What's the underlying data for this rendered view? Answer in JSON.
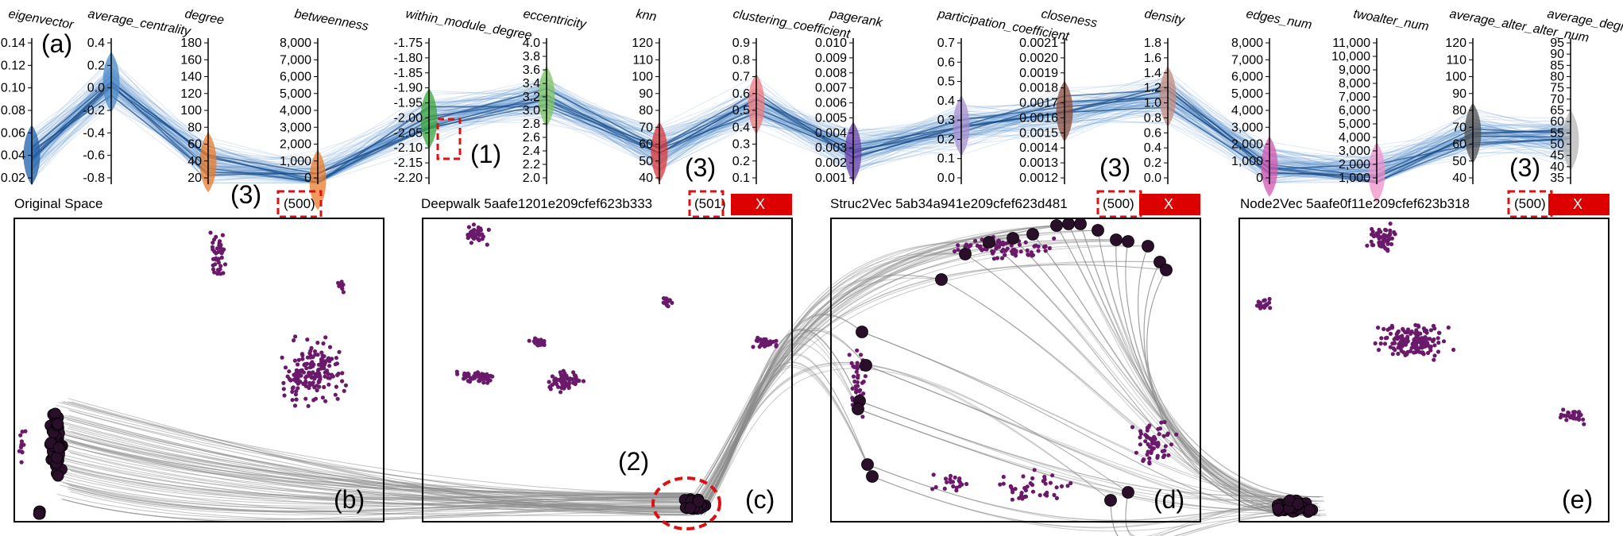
{
  "parallel_coordinates": {
    "marker": "(a)",
    "axes": [
      {
        "name": "eigenvector",
        "ticks": [
          "0.14",
          "0.12",
          "0.10",
          "0.08",
          "0.06",
          "0.04",
          "0.02"
        ],
        "color": "#1f5fa8"
      },
      {
        "name": "average_centrality",
        "ticks": [
          "0.4",
          "0.2",
          "0.0",
          "-0.2",
          "-0.4",
          "-0.6",
          "-0.8"
        ],
        "color": "#4a88c6"
      },
      {
        "name": "degree",
        "ticks": [
          "180",
          "160",
          "140",
          "120",
          "100",
          "80",
          "60",
          "40",
          "20"
        ],
        "color": "#e87b2a"
      },
      {
        "name": "betweenness",
        "ticks": [
          "8,000",
          "7,000",
          "6,000",
          "5,000",
          "4,000",
          "3,000",
          "2,000",
          "1,000",
          "0"
        ],
        "color": "#e87b2a"
      },
      {
        "name": "within_module_degree",
        "ticks": [
          "-1.75",
          "-1.80",
          "-1.85",
          "-1.90",
          "-1.95",
          "-2.00",
          "-2.05",
          "-2.10",
          "-2.15",
          "-2.20"
        ],
        "color": "#3aa43a"
      },
      {
        "name": "eccentricity",
        "ticks": [
          "4.0",
          "3.8",
          "3.6",
          "3.4",
          "3.2",
          "3.0",
          "2.8",
          "2.6",
          "2.4",
          "2.2",
          "2.0"
        ],
        "color": "#7cc460"
      },
      {
        "name": "knn",
        "ticks": [
          "120",
          "110",
          "100",
          "90",
          "80",
          "70",
          "60",
          "50",
          "40"
        ],
        "color": "#d9363a"
      },
      {
        "name": "clustering_coefficient",
        "ticks": [
          "0.9",
          "0.8",
          "0.7",
          "0.6",
          "0.5",
          "0.4",
          "0.3",
          "0.2",
          "0.1"
        ],
        "color": "#ee7a7c"
      },
      {
        "name": "pagerank",
        "ticks": [
          "0.010",
          "0.009",
          "0.008",
          "0.007",
          "0.006",
          "0.005",
          "0.004",
          "0.003",
          "0.002",
          "0.001"
        ],
        "color": "#6a3fa8"
      },
      {
        "name": "participation_coefficient",
        "ticks": [
          "0.7",
          "0.6",
          "0.5",
          "0.4",
          "0.3",
          "0.2",
          "0.1",
          "0.0"
        ],
        "color": "#a78fce"
      },
      {
        "name": "closeness",
        "ticks": [
          "0.0021",
          "0.0020",
          "0.0019",
          "0.0018",
          "0.0017",
          "0.0016",
          "0.0015",
          "0.0014",
          "0.0013",
          "0.0012"
        ],
        "color": "#8a4a3a"
      },
      {
        "name": "density",
        "ticks": [
          "1.8",
          "1.6",
          "1.4",
          "1.2",
          "1.0",
          "0.8",
          "0.6",
          "0.4",
          "0.2",
          "0.0"
        ],
        "color": "#c28a7e"
      },
      {
        "name": "edges_num",
        "ticks": [
          "8,000",
          "7,000",
          "6,000",
          "5,000",
          "4,000",
          "3,000",
          "2,000",
          "1,000",
          "0"
        ],
        "color": "#d454b0"
      },
      {
        "name": "twoalter_num",
        "ticks": [
          "11,000",
          "10,000",
          "9,000",
          "8,000",
          "7,000",
          "6,000",
          "5,000",
          "4,000",
          "3,000",
          "2,000",
          "1,000"
        ],
        "color": "#ef90c8"
      },
      {
        "name": "average_alter_alter_num",
        "ticks": [
          "120",
          "110",
          "100",
          "90",
          "80",
          "70",
          "60",
          "50",
          "40"
        ],
        "color": "#505050"
      },
      {
        "name": "average_degree",
        "ticks": [
          "95",
          "90",
          "85",
          "80",
          "75",
          "70",
          "65",
          "60",
          "55",
          "50",
          "45",
          "40",
          "35"
        ],
        "color": "#b5b5b5"
      }
    ],
    "annotation_1": "(1)"
  },
  "panels": [
    {
      "title": "Original Space",
      "count": "(500)",
      "marker": "(b)",
      "closable": false,
      "annotation": "(3)"
    },
    {
      "title": "Deepwalk 5aafe1201e209cfef623b333",
      "count": "(501)",
      "marker": "(c)",
      "closable": true,
      "close_label": "X",
      "annotation": "(3)"
    },
    {
      "title": "Struc2Vec 5ab34a941e209cfef623d481",
      "count": "(500)",
      "marker": "(d)",
      "closable": true,
      "close_label": "X",
      "annotation": "(3)"
    },
    {
      "title": "Node2Vec 5aafe0f11e209cfef623b318",
      "count": "(500)",
      "marker": "(e)",
      "closable": true,
      "close_label": "X",
      "annotation": "(3)"
    }
  ],
  "annotation_2": "(2)",
  "colors": {
    "point": "#6b1a6b",
    "selected_point": "#2a0f2a",
    "link": "#8a8a8a",
    "close_button": "#dd0000",
    "annotation_box": "#dd1111",
    "pcp_line": "#4a86c8"
  }
}
